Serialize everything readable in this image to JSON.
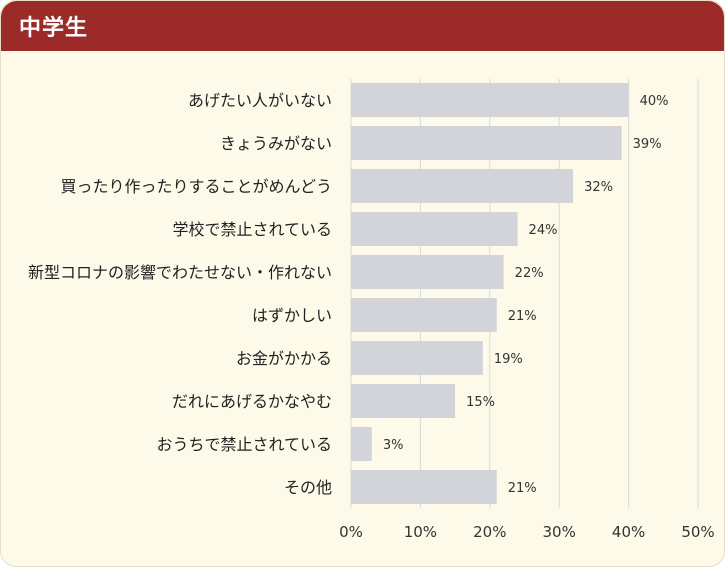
{
  "header": {
    "title": "中学生"
  },
  "chart_data": {
    "type": "bar",
    "orientation": "horizontal",
    "title": "中学生",
    "categories": [
      "あげたい人がいない",
      "きょうみがない",
      "買ったり作ったりすることがめんどう",
      "学校で禁止されている",
      "新型コロナの影響でわたせない・作れない",
      "はずかしい",
      "お金がかかる",
      "だれにあげるかなやむ",
      "おうちで禁止されている",
      "その他"
    ],
    "values": [
      40,
      39,
      32,
      24,
      22,
      21,
      19,
      15,
      3,
      21
    ],
    "value_labels": [
      "40%",
      "39%",
      "32%",
      "24%",
      "22%",
      "21%",
      "19%",
      "15%",
      "3%",
      "21%"
    ],
    "xlim": [
      0,
      50
    ],
    "xticks": [
      0,
      10,
      20,
      30,
      40,
      50
    ],
    "xtick_labels": [
      "0%",
      "10%",
      "20%",
      "30%",
      "40%",
      "50%"
    ],
    "grid": true,
    "colors": {
      "bar": "#d3d4d9",
      "header": "#9b2a29",
      "background": "#fdfaea",
      "grid": "#d9d9d9"
    }
  }
}
